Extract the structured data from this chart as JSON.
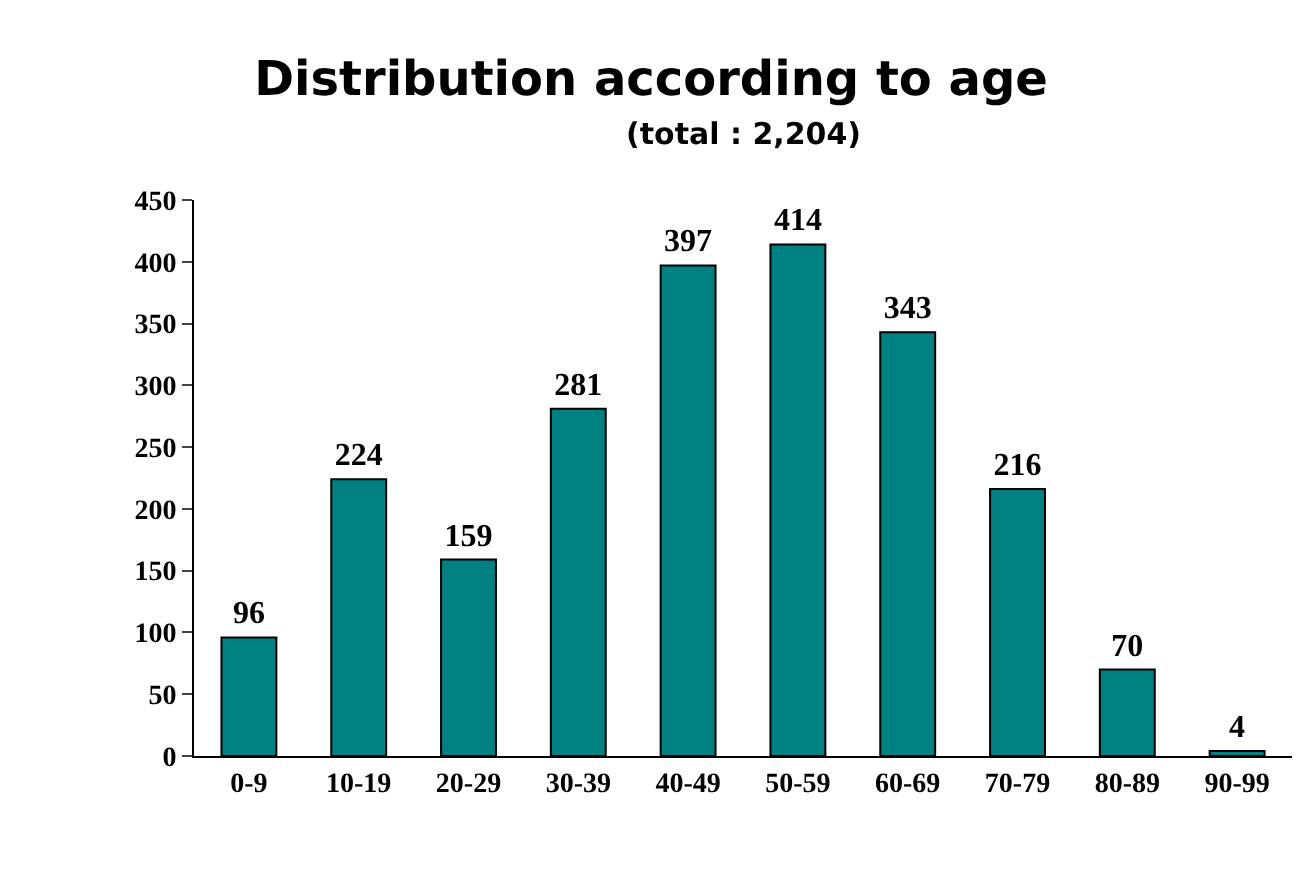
{
  "chart_data": {
    "type": "bar",
    "title": "Distribution according to age",
    "subtitle": "(total : 2,204)",
    "categories": [
      "0-9",
      "10-19",
      "20-29",
      "30-39",
      "40-49",
      "50-59",
      "60-69",
      "70-79",
      "80-89",
      "90-99"
    ],
    "values": [
      96,
      224,
      159,
      281,
      397,
      414,
      343,
      216,
      70,
      4
    ],
    "color": "#008080",
    "ylim": [
      0,
      450
    ],
    "yticks": [
      0,
      50,
      100,
      150,
      200,
      250,
      300,
      350,
      400,
      450
    ],
    "data_labels": true,
    "legend": false
  }
}
